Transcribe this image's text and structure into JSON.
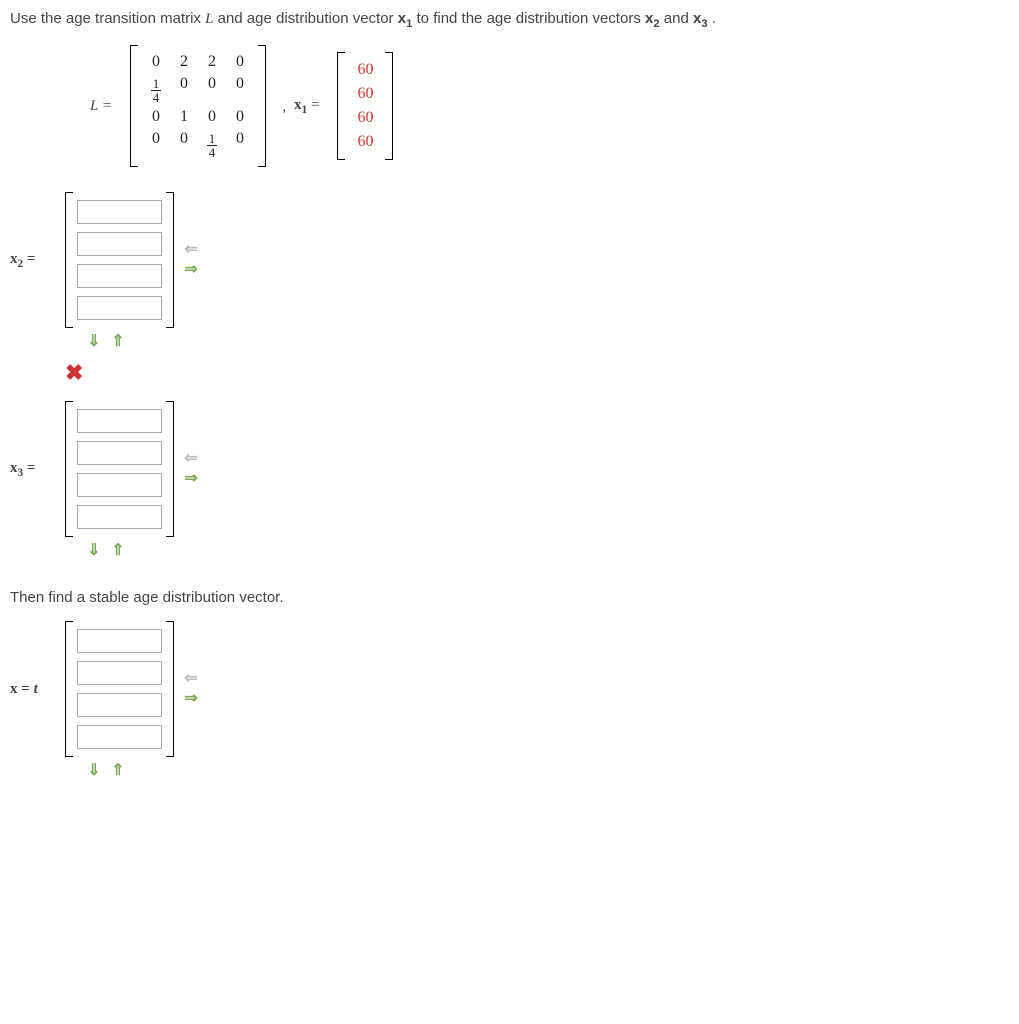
{
  "prompt_html_parts": {
    "text1": "Use the age transition matrix ",
    "L": "L",
    "text2": " and age distribution vector ",
    "x1": "x",
    "text3": " to find the age distribution vectors ",
    "x2": "x",
    "text4": " and ",
    "x3": "x",
    "text5": "."
  },
  "matrix_label": "L =",
  "x1_label_prefix": "x",
  "x1_label_suffix": " = ",
  "L_matrix": [
    [
      "0",
      "2",
      "2",
      "0"
    ],
    [
      "frac14",
      "0",
      "0",
      "0"
    ],
    [
      "0",
      "1",
      "0",
      "0"
    ],
    [
      "0",
      "0",
      "frac14",
      "0"
    ]
  ],
  "x1_vector": [
    "60",
    "60",
    "60",
    "60"
  ],
  "x1_color": "#cc3333",
  "answers": [
    {
      "label": "x",
      "sub": "2",
      "rows": 4,
      "status": "wrong"
    },
    {
      "label": "x",
      "sub": "3",
      "rows": 4,
      "status": "none"
    }
  ],
  "stable_prompt": "Then find a stable age distribution vector.",
  "stable_label_prefix": "x",
  "stable_label_suffix": " = ",
  "stable_t": "t",
  "stable_rows": 4,
  "arrows": {
    "left": "⇐",
    "right": "⇒",
    "down": "⇓",
    "up": "⇑"
  },
  "x_mark": "✖",
  "colors": {
    "text": "#444",
    "red": "#cc3333",
    "arrow_green": "#7ba85a",
    "arrow_gray": "#bbb",
    "border": "#aaa"
  }
}
